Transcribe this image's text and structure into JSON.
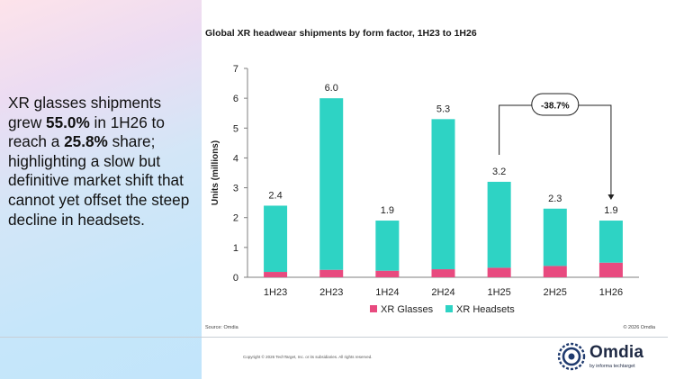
{
  "headline": {
    "part1": "XR glasses shipments grew ",
    "growth": "55.0%",
    "part2": " in 1H26 to reach a ",
    "share": "25.8%",
    "part3": " share; highlighting a slow but definitive market shift that cannot yet offset the steep decline in headsets."
  },
  "source": "Source: Omdia",
  "chart_copyright": "© 2026 Omdia",
  "copyright": "Copyright © 2026 TechTarget, Inc. or its subsidiaries. All rights reserved.",
  "logo": {
    "word": "Omdia",
    "byline": "by informa techtarget"
  },
  "colors": {
    "glasses": "#e84a7f",
    "headsets": "#2ed3c4",
    "axis": "#7f7f7f"
  },
  "chart_data": {
    "type": "bar",
    "stacked": true,
    "title": "Global XR headwear shipments by form factor, 1H23 to 1H26",
    "ylabel": "Units (millions)",
    "xlabel": "",
    "ylim": [
      0,
      7
    ],
    "yticks": [
      "0",
      "1",
      "2",
      "3",
      "4",
      "5",
      "6",
      "7"
    ],
    "grid": false,
    "legend": "bottom",
    "categories": [
      "1H23",
      "2H23",
      "1H24",
      "2H24",
      "1H25",
      "2H25",
      "1H26"
    ],
    "series": [
      {
        "name": "XR Glasses",
        "values": [
          0.18,
          0.25,
          0.22,
          0.27,
          0.32,
          0.38,
          0.49
        ]
      },
      {
        "name": "XR Headsets",
        "values": [
          2.22,
          5.75,
          1.68,
          5.03,
          2.88,
          1.92,
          1.41
        ]
      }
    ],
    "totals": [
      "2.4",
      "6.0",
      "1.9",
      "5.3",
      "3.2",
      "2.3",
      "1.9"
    ],
    "annotation": {
      "label": "-38.7%",
      "from": "1H25",
      "to": "1H26"
    }
  }
}
